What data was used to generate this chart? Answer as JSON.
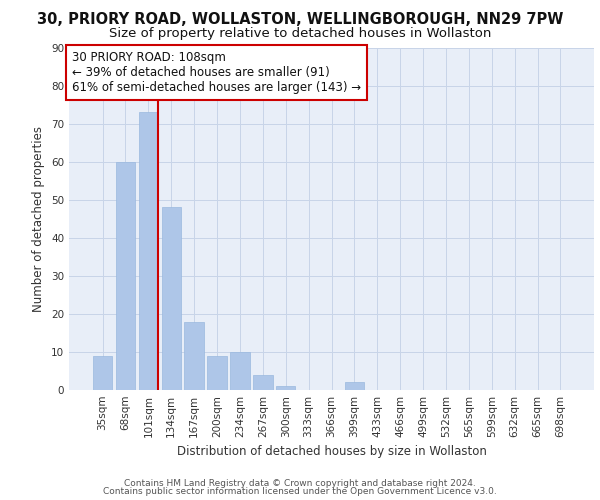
{
  "title_line1": "30, PRIORY ROAD, WOLLASTON, WELLINGBOROUGH, NN29 7PW",
  "title_line2": "Size of property relative to detached houses in Wollaston",
  "xlabel": "Distribution of detached houses by size in Wollaston",
  "ylabel": "Number of detached properties",
  "categories": [
    "35sqm",
    "68sqm",
    "101sqm",
    "134sqm",
    "167sqm",
    "200sqm",
    "234sqm",
    "267sqm",
    "300sqm",
    "333sqm",
    "366sqm",
    "399sqm",
    "433sqm",
    "466sqm",
    "499sqm",
    "532sqm",
    "565sqm",
    "599sqm",
    "632sqm",
    "665sqm",
    "698sqm"
  ],
  "values": [
    9,
    60,
    73,
    48,
    18,
    9,
    10,
    4,
    1,
    0,
    0,
    2,
    0,
    0,
    0,
    0,
    0,
    0,
    0,
    0,
    0
  ],
  "bar_color": "#aec6e8",
  "bar_edge_color": "#aec6e8",
  "vline_bin_index": 2,
  "vline_color": "#cc0000",
  "annotation_text": "30 PRIORY ROAD: 108sqm\n← 39% of detached houses are smaller (91)\n61% of semi-detached houses are larger (143) →",
  "annotation_box_edgecolor": "#cc0000",
  "annotation_box_facecolor": "#ffffff",
  "annotation_fontsize": 8.5,
  "ylim": [
    0,
    90
  ],
  "yticks": [
    0,
    10,
    20,
    30,
    40,
    50,
    60,
    70,
    80,
    90
  ],
  "grid_color": "#c8d4e8",
  "background_color": "#e8eef8",
  "footer_line1": "Contains HM Land Registry data © Crown copyright and database right 2024.",
  "footer_line2": "Contains public sector information licensed under the Open Government Licence v3.0.",
  "title_fontsize": 10.5,
  "subtitle_fontsize": 9.5,
  "axis_label_fontsize": 8.5,
  "tick_fontsize": 7.5,
  "footer_fontsize": 6.5
}
